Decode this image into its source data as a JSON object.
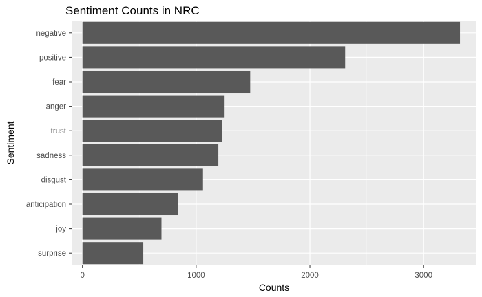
{
  "chart_data": {
    "type": "bar",
    "orientation": "horizontal",
    "title": "Sentiment Counts in NRC",
    "xlabel": "Counts",
    "ylabel": "Sentiment",
    "categories": [
      "negative",
      "positive",
      "fear",
      "anger",
      "trust",
      "sadness",
      "disgust",
      "anticipation",
      "joy",
      "surprise"
    ],
    "values": [
      3320,
      2310,
      1475,
      1250,
      1230,
      1195,
      1060,
      840,
      695,
      535
    ],
    "xlim": [
      -95,
      3465
    ],
    "x_ticks": [
      0,
      1000,
      2000,
      3000
    ],
    "grid": true,
    "colors": {
      "bar": "#595959",
      "panel": "#ebebeb",
      "grid_major": "#ffffff",
      "grid_minor": "#f5f5f5"
    }
  }
}
